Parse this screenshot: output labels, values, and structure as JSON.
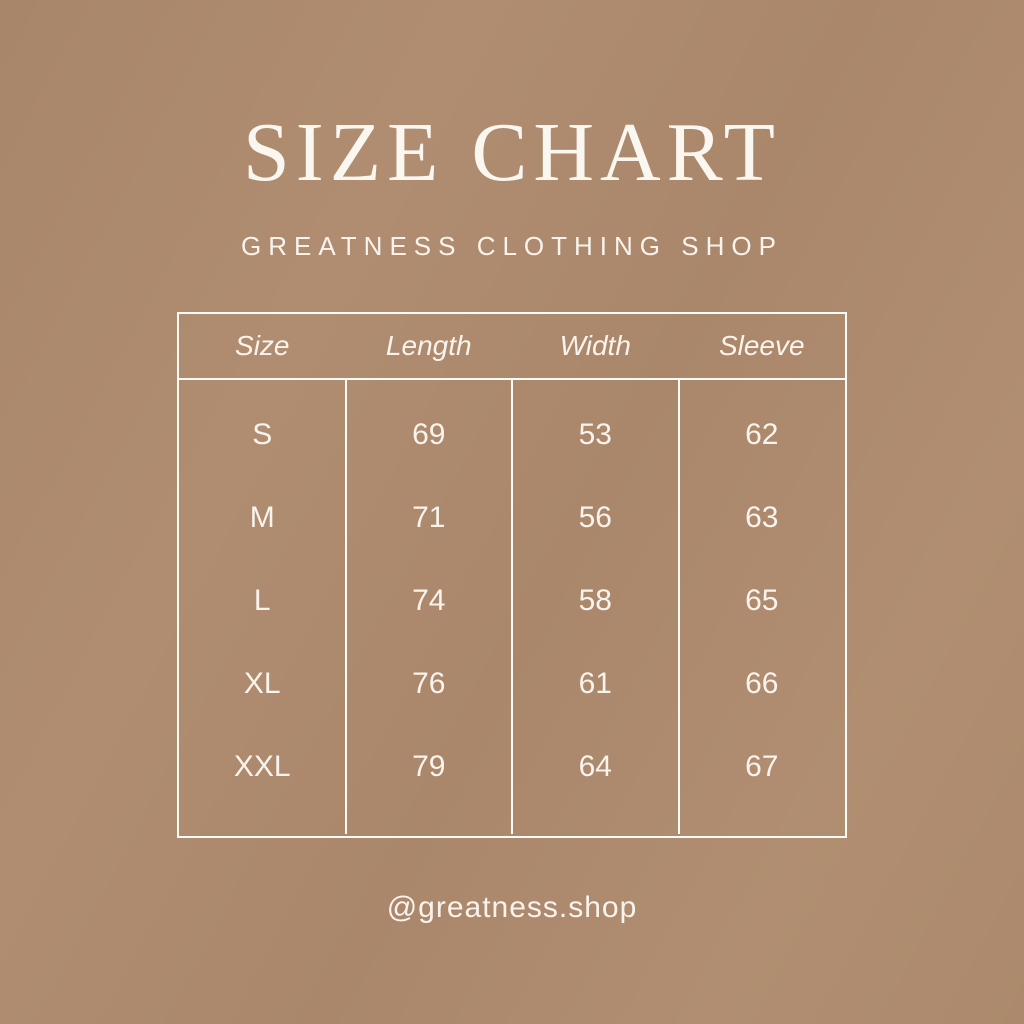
{
  "title": "SIZE CHART",
  "subtitle": "GREATNESS CLOTHING SHOP",
  "footer": {
    "handle": "@greatness.shop"
  },
  "colors": {
    "background": "#ad8a6c",
    "text": "#f8f3ec",
    "line": "#fdfbf7"
  },
  "table": {
    "headers": [
      "Size",
      "Length",
      "Width",
      "Sleeve"
    ],
    "rows": [
      [
        "S",
        "69",
        "53",
        "62"
      ],
      [
        "M",
        "71",
        "56",
        "63"
      ],
      [
        "L",
        "74",
        "58",
        "65"
      ],
      [
        "XL",
        "76",
        "61",
        "66"
      ],
      [
        "XXL",
        "79",
        "64",
        "67"
      ]
    ]
  },
  "chart_data": {
    "type": "table",
    "title": "SIZE CHART",
    "subtitle": "GREATNESS CLOTHING SHOP",
    "columns": [
      "Size",
      "Length",
      "Width",
      "Sleeve"
    ],
    "rows": [
      [
        "S",
        69,
        53,
        62
      ],
      [
        "M",
        71,
        56,
        63
      ],
      [
        "L",
        74,
        58,
        65
      ],
      [
        "XL",
        76,
        61,
        66
      ],
      [
        "XXL",
        79,
        64,
        67
      ]
    ]
  }
}
